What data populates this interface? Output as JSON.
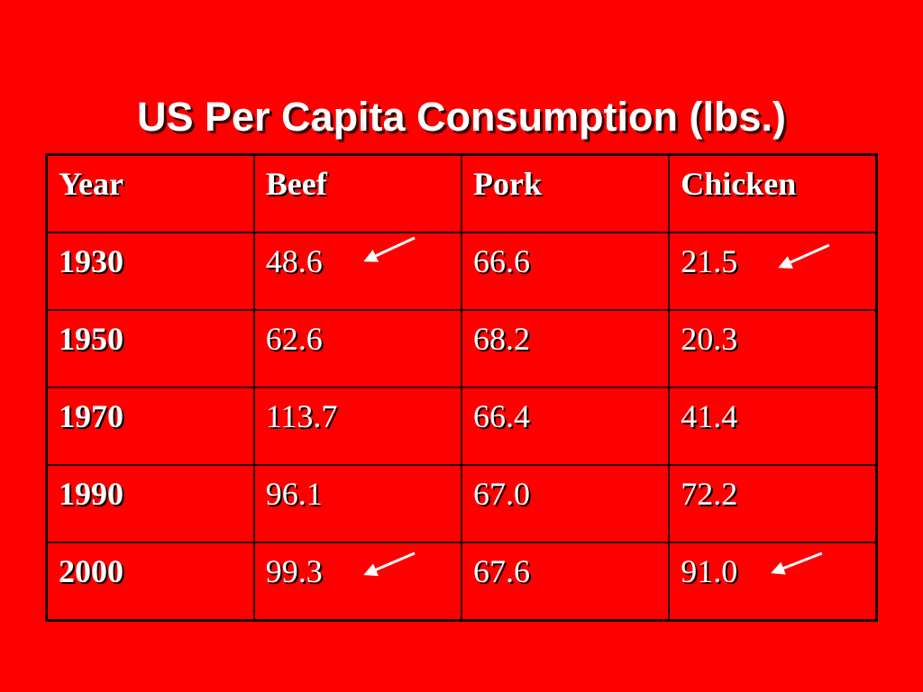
{
  "header": {
    "title": "US Per Capita Consumption (lbs.)"
  },
  "table": {
    "header": [
      "Year",
      "Beef",
      "Pork",
      "Chicken"
    ],
    "rows": [
      [
        "1930",
        "48.6",
        "66.6",
        "21.5"
      ],
      [
        "1950",
        "62.6",
        "68.2",
        "20.3"
      ],
      [
        "1970",
        "113.7",
        "66.4",
        "41.4"
      ],
      [
        "1990",
        "96.1",
        "67.0",
        "72.2"
      ],
      [
        "2000",
        "99.3",
        "67.6",
        "91.0"
      ]
    ]
  }
}
